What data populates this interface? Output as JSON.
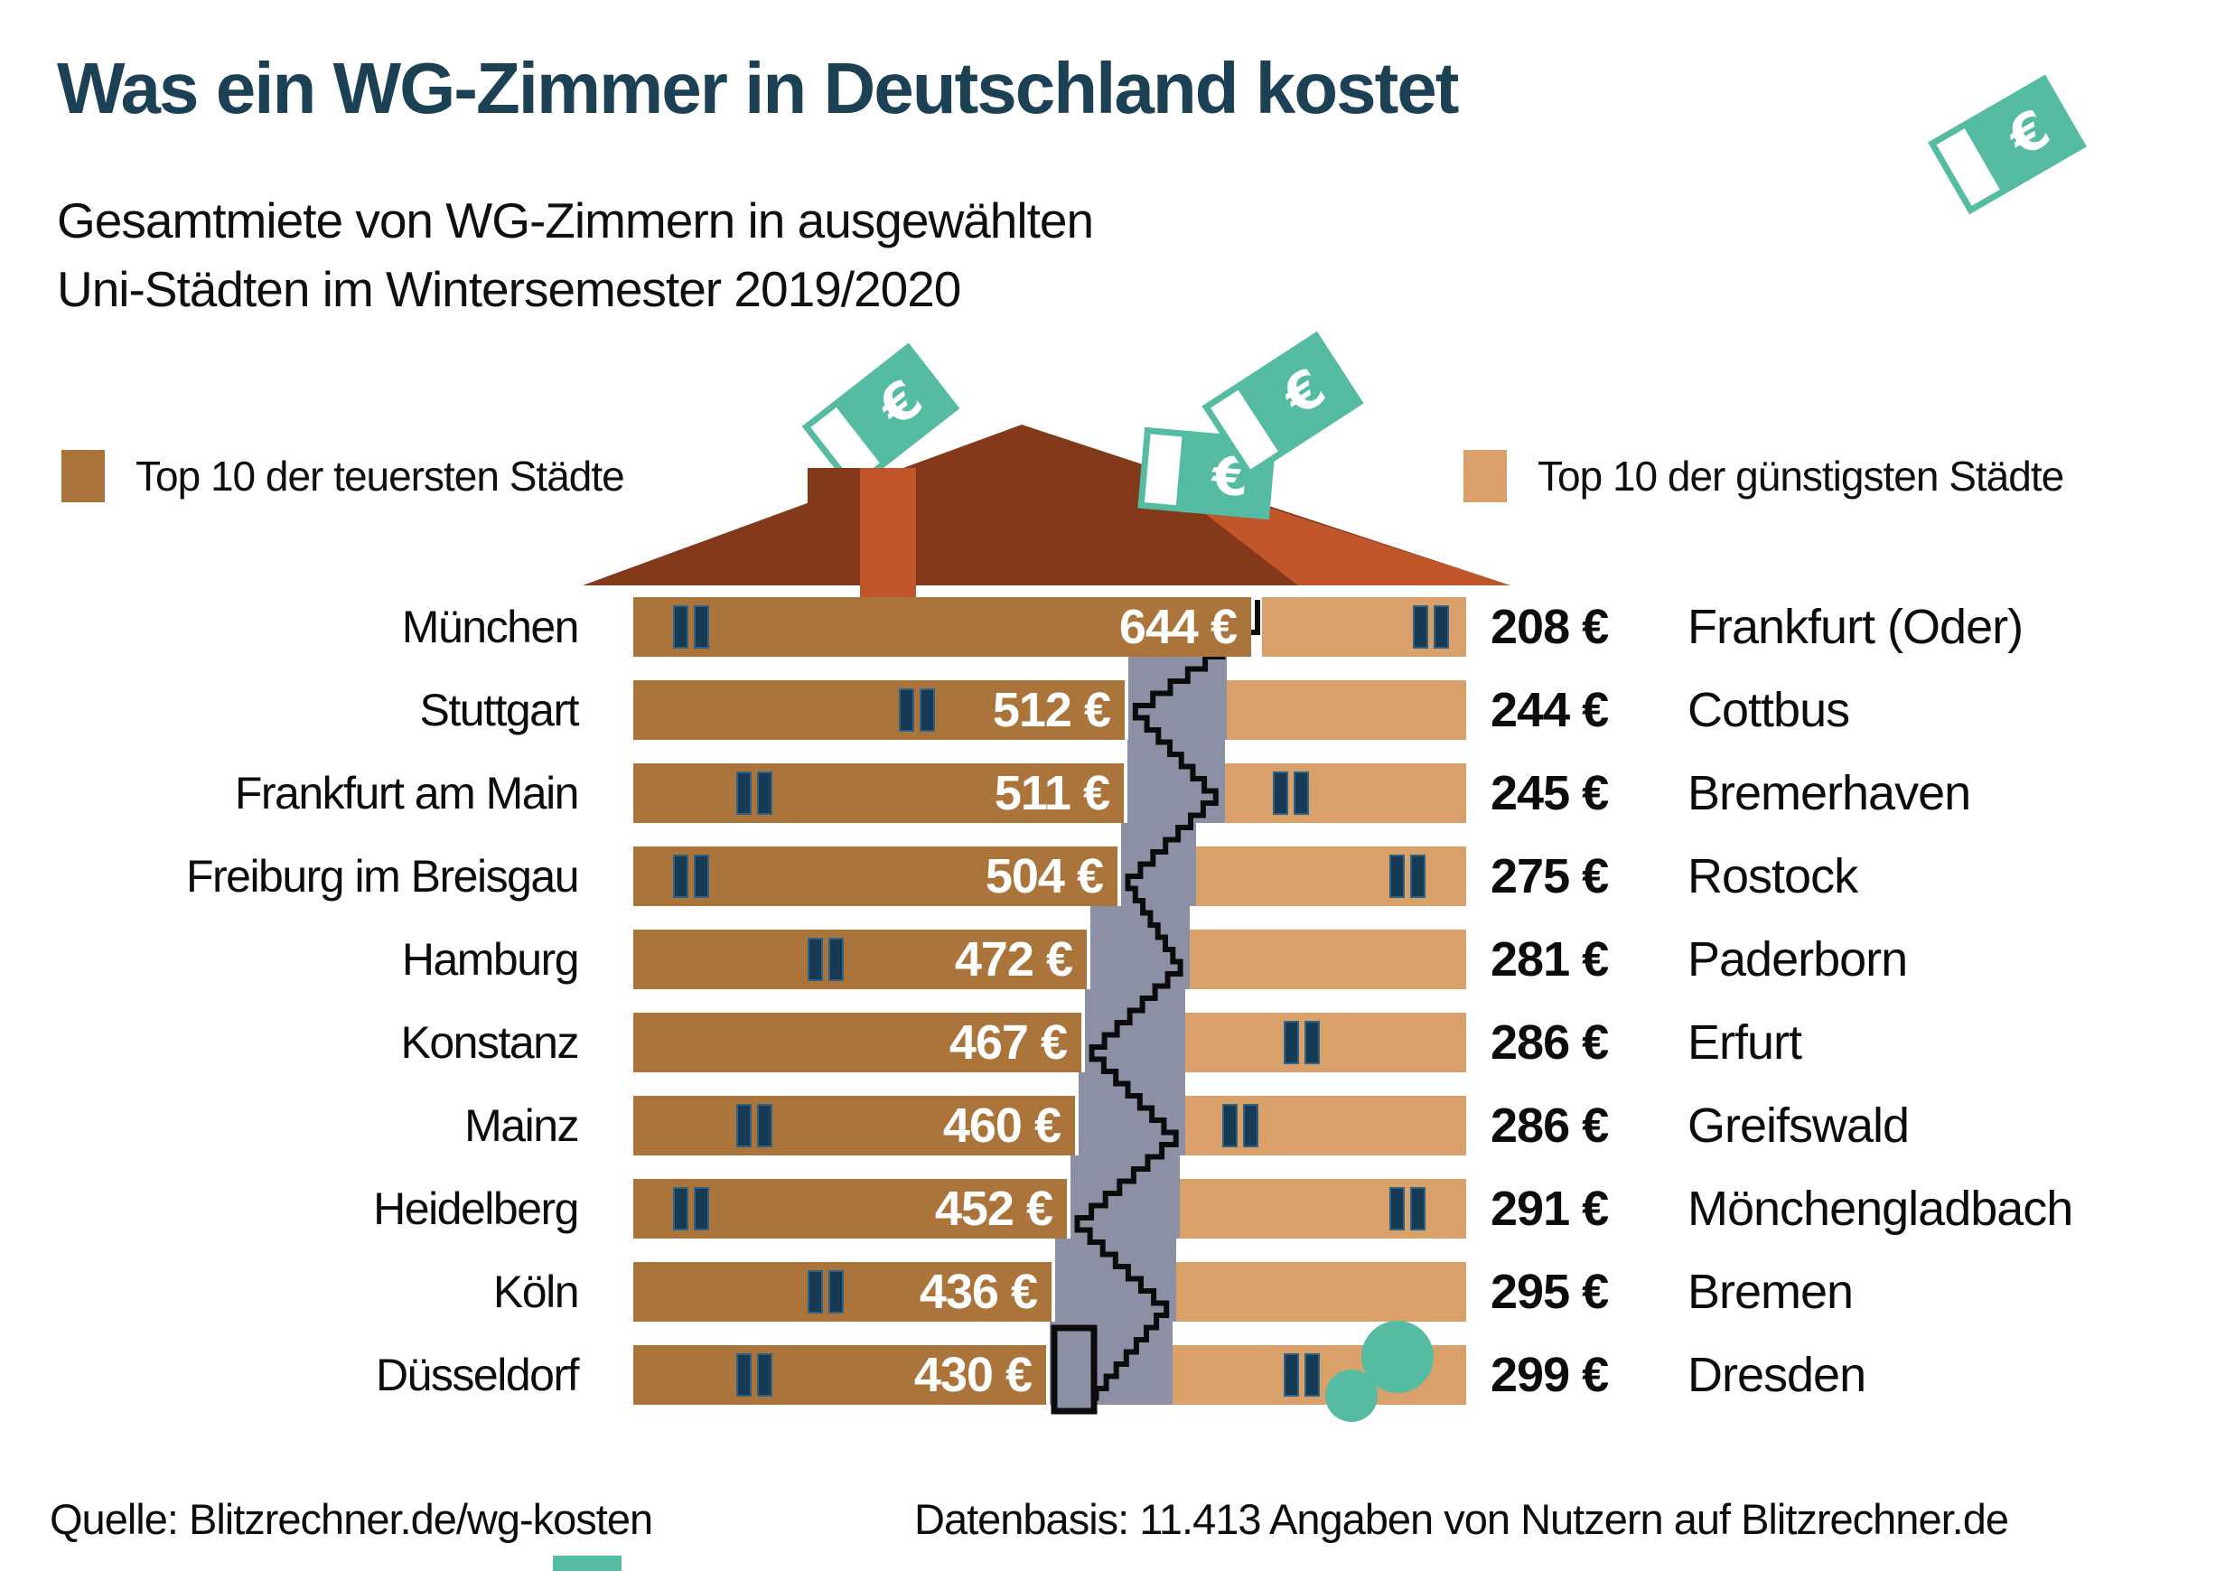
{
  "title": "Was ein WG-Zimmer in Deutschland kostet",
  "subtitle_line1": "Gesamtmiete von WG-Zimmern in ausgewählten",
  "subtitle_line2": "Uni-Städten im Wintersemester 2019/2020",
  "legend": {
    "expensive_label": "Top 10 der teuersten Städte",
    "cheap_label": "Top 10 der günstigsten Städte"
  },
  "colors": {
    "title_navy": "#1d4154",
    "expensive_brown": "#aa743b",
    "cheap_tan": "#d9a169",
    "window_navy": "#173a55",
    "stair_gray": "#8b90a4",
    "stair_line": "#0b0b0b",
    "roof_dark": "#85391b",
    "roof_light": "#c2562b",
    "money_teal": "#55bba3",
    "value_white": "#ffffff"
  },
  "icons": [
    "euro-banknote-icon",
    "house-roof-icon",
    "chimney-icon",
    "window-icon",
    "staircase-icon",
    "door-icon"
  ],
  "unit_suffix": "€",
  "chart_data": {
    "type": "bar",
    "title": "Was ein WG-Zimmer in Deutschland kostet",
    "subtitle": "Gesamtmiete von WG-Zimmern in ausgewählten Uni-Städten im Wintersemester 2019/2020",
    "orientation": "horizontal-mirrored",
    "unit": "€",
    "series": [
      {
        "name": "Top 10 der teuersten Städte",
        "side": "left",
        "color": "#aa743b",
        "categories": [
          "München",
          "Stuttgart",
          "Frankfurt am Main",
          "Freiburg im Breisgau",
          "Hamburg",
          "Konstanz",
          "Mainz",
          "Heidelberg",
          "Köln",
          "Düsseldorf"
        ],
        "values": [
          644,
          512,
          511,
          504,
          472,
          467,
          460,
          452,
          436,
          430
        ],
        "windows": [
          44,
          294,
          114,
          44,
          193,
          null,
          114,
          44,
          193,
          114
        ]
      },
      {
        "name": "Top 10 der günstigsten Städte",
        "side": "right",
        "color": "#d9a169",
        "categories": [
          "Frankfurt (Oder)",
          "Cottbus",
          "Bremerhaven",
          "Rostock",
          "Paderborn",
          "Erfurt",
          "Greifswald",
          "Mönchengladbach",
          "Bremen",
          "Dresden"
        ],
        "values": [
          208,
          244,
          245,
          275,
          281,
          286,
          286,
          291,
          295,
          299
        ],
        "windows": [
          167,
          null,
          53,
          214,
          null,
          109,
          41,
          232,
          null,
          123
        ]
      }
    ]
  },
  "footer": {
    "source": "Quelle: Blitzrechner.de/wg-kosten",
    "data_basis": "Datenbasis: 11.413 Angaben von Nutzern auf Blitzrechner.de"
  }
}
